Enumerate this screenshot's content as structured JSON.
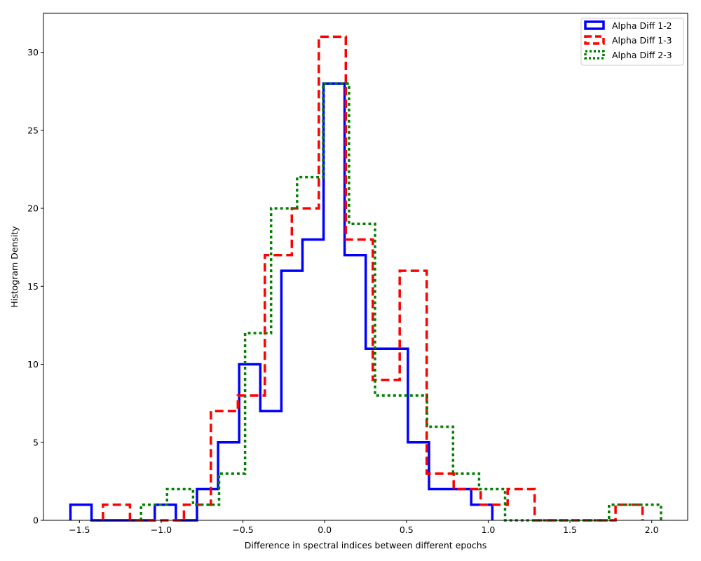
{
  "chart_data": {
    "type": "step-histogram",
    "xlabel": "Difference in spectral indices between different epochs",
    "ylabel": "Histogram Density",
    "xlim": [
      -1.72,
      2.22
    ],
    "ylim": [
      0,
      32.5
    ],
    "xticks": [
      {
        "value": -1.5,
        "label": "−1.5"
      },
      {
        "value": -1.0,
        "label": "−1.0"
      },
      {
        "value": -0.5,
        "label": "−0.5"
      },
      {
        "value": 0.0,
        "label": "0.0"
      },
      {
        "value": 0.5,
        "label": "0.5"
      },
      {
        "value": 1.0,
        "label": "1.0"
      },
      {
        "value": 1.5,
        "label": "1.5"
      },
      {
        "value": 2.0,
        "label": "2.0"
      }
    ],
    "yticks": [
      {
        "value": 0,
        "label": "0"
      },
      {
        "value": 5,
        "label": "5"
      },
      {
        "value": 10,
        "label": "10"
      },
      {
        "value": 15,
        "label": "15"
      },
      {
        "value": 20,
        "label": "20"
      },
      {
        "value": 25,
        "label": "25"
      },
      {
        "value": 30,
        "label": "30"
      }
    ],
    "legend_position": "top-right",
    "grid": false,
    "series": [
      {
        "name": "Alpha Diff 1-2",
        "color": "#0000ff",
        "linestyle": "solid",
        "bin_edges": [
          -1.555,
          -1.426,
          -1.297,
          -1.168,
          -1.039,
          -0.91,
          -0.781,
          -0.652,
          -0.523,
          -0.394,
          -0.265,
          -0.136,
          -0.007,
          0.122,
          0.251,
          0.38,
          0.509,
          0.638,
          0.767,
          0.896,
          1.025
        ],
        "values": [
          1,
          0,
          0,
          0,
          1,
          0,
          2,
          5,
          10,
          7,
          16,
          18,
          28,
          17,
          11,
          11,
          5,
          2,
          2,
          1
        ]
      },
      {
        "name": "Alpha Diff 1-3",
        "color": "#ff0000",
        "linestyle": "dashed",
        "bin_edges": [
          -1.356,
          -1.191,
          -1.026,
          -0.861,
          -0.696,
          -0.531,
          -0.366,
          -0.201,
          -0.036,
          0.129,
          0.294,
          0.459,
          0.624,
          0.789,
          0.954,
          1.119,
          1.284,
          1.449,
          1.614,
          1.779,
          1.944
        ],
        "values": [
          1,
          0,
          0,
          1,
          7,
          8,
          17,
          20,
          31,
          18,
          9,
          16,
          3,
          2,
          1,
          2,
          0,
          0,
          0,
          1
        ]
      },
      {
        "name": "Alpha Diff 2-3",
        "color": "#008000",
        "linestyle": "dotted",
        "bin_edges": [
          -1.123,
          -0.964,
          -0.805,
          -0.646,
          -0.487,
          -0.328,
          -0.169,
          -0.01,
          0.149,
          0.308,
          0.467,
          0.626,
          0.785,
          0.944,
          1.103,
          1.262,
          1.421,
          1.58,
          1.739,
          1.898,
          2.057
        ],
        "values": [
          1,
          2,
          1,
          3,
          12,
          20,
          22,
          28,
          19,
          8,
          8,
          6,
          3,
          2,
          0,
          0,
          0,
          0,
          1,
          1
        ]
      }
    ]
  }
}
